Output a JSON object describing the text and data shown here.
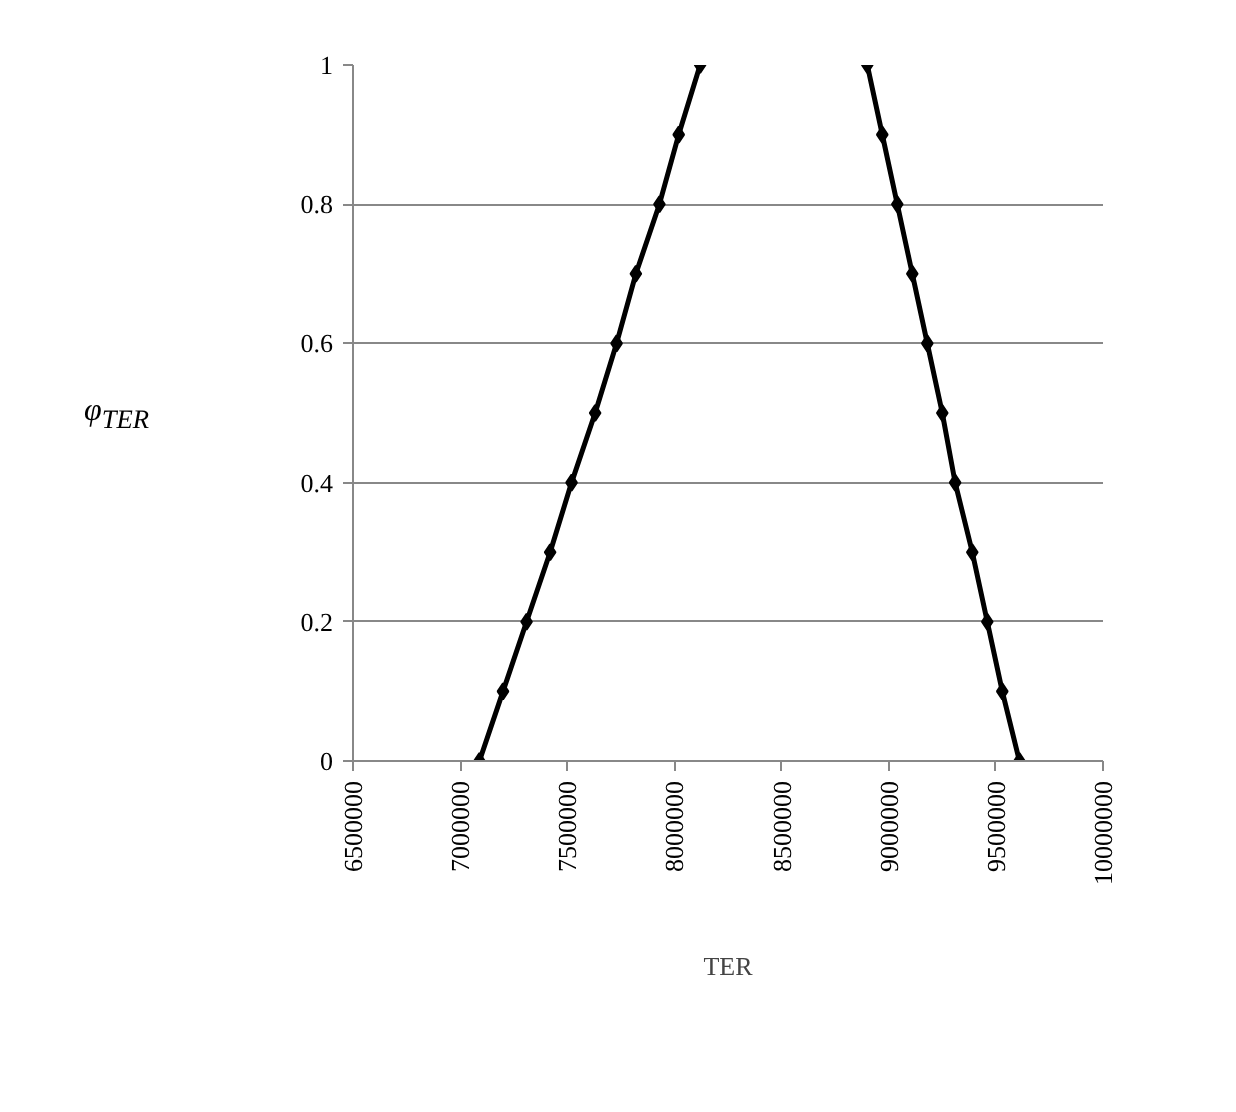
{
  "chart_data": {
    "type": "line",
    "xlabel": "TER",
    "ylabel": "φ$_{TER}$",
    "xlim": [
      6500000,
      10000000
    ],
    "xticks": [
      6500000,
      7000000,
      7500000,
      8000000,
      8500000,
      9000000,
      9500000,
      10000000
    ],
    "ylim": [
      0,
      1
    ],
    "yticks": [
      0,
      {
        "value": 0.2,
        "label": "0.2"
      },
      {
        "value": 0.4,
        "label": "0.4"
      },
      {
        "value": 0.6,
        "label": "0.6"
      },
      {
        "value": 0.8,
        "label": "0.8"
      },
      1
    ],
    "grid": "y",
    "marker": "diamond",
    "line_style": "solid",
    "series": [
      {
        "color": "#000000",
        "x": [
          7090000,
          7200000,
          7310000,
          7420000,
          7520000,
          7630000,
          7730000,
          7820000,
          7930000,
          8020000,
          8120000
        ],
        "values": [
          0,
          0.1,
          0.2,
          0.3,
          0.4,
          0.5,
          0.6,
          0.7,
          0.8,
          0.9,
          1
        ]
      },
      {
        "color": "#000000",
        "x": [
          8900000,
          8970000,
          9040000,
          9110000,
          9180000,
          9250000,
          9310000,
          9390000,
          9460000,
          9530000,
          9610000
        ],
        "values": [
          1,
          0.9,
          0.8,
          0.7,
          0.6,
          0.5,
          0.4,
          0.3,
          0.2,
          0.1,
          0
        ]
      }
    ]
  }
}
